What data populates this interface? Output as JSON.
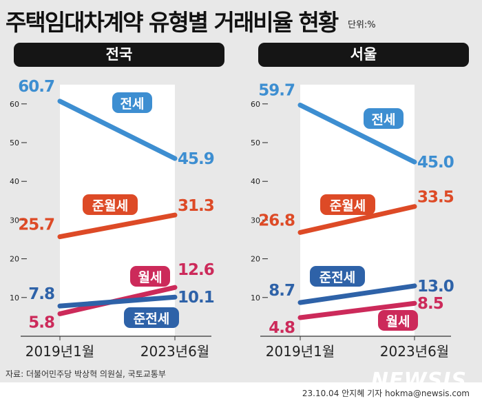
{
  "title": "주택임대차계약 유형별 거래비율 현황",
  "unit": "단위:%",
  "source": "자료: 더불어민주당 박상혁 의원실, 국토교통부",
  "credit": "23.10.04 안지혜 기자 hokma@newsis.com",
  "logo": "NEWSIS",
  "colors": {
    "전세": "#3d8ed1",
    "준월세": "#dd4a26",
    "월세": "#cc2a5a",
    "준전세": "#2e62a8"
  },
  "chart_data": [
    {
      "type": "line",
      "title": "전국",
      "categories": [
        "2019년1월",
        "2023년6월"
      ],
      "ylim": [
        0,
        60
      ],
      "yticks": [
        10,
        20,
        30,
        40,
        50,
        60
      ],
      "series": [
        {
          "name": "전세",
          "values": [
            60.7,
            45.9
          ]
        },
        {
          "name": "준월세",
          "values": [
            25.7,
            31.3
          ]
        },
        {
          "name": "월세",
          "values": [
            5.8,
            12.6
          ]
        },
        {
          "name": "준전세",
          "values": [
            7.8,
            10.1
          ]
        }
      ]
    },
    {
      "type": "line",
      "title": "서울",
      "categories": [
        "2019년1월",
        "2023년6월"
      ],
      "ylim": [
        0,
        60
      ],
      "yticks": [
        10,
        20,
        30,
        40,
        50,
        60
      ],
      "series": [
        {
          "name": "전세",
          "values": [
            59.7,
            45.0
          ]
        },
        {
          "name": "준월세",
          "values": [
            26.8,
            33.5
          ]
        },
        {
          "name": "월세",
          "values": [
            4.8,
            8.5
          ]
        },
        {
          "name": "준전세",
          "values": [
            8.7,
            13.0
          ]
        }
      ]
    }
  ]
}
